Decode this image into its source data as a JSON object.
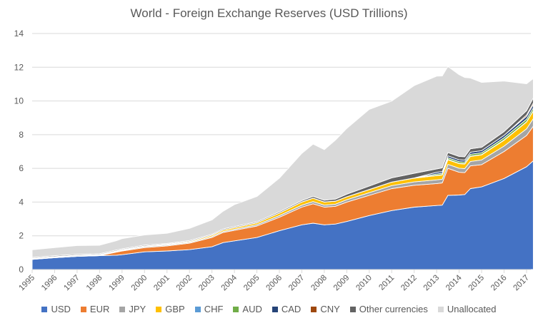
{
  "chart_data": {
    "type": "area",
    "stacked": true,
    "title": "World - Foreign Exchange Reserves (USD Trillions)",
    "xlabel": "",
    "ylabel": "",
    "ylim": [
      0,
      14
    ],
    "yticks": [
      0,
      2,
      4,
      6,
      8,
      10,
      12,
      14
    ],
    "xlim": [
      1995,
      2017.3
    ],
    "xticks": [
      "1995",
      "1996",
      "1997",
      "1998",
      "1999",
      "2000",
      "2001",
      "2002",
      "2003",
      "2004",
      "2005",
      "2006",
      "2007",
      "2008",
      "2009",
      "2010",
      "2011",
      "2012",
      "2013",
      "2014",
      "2015",
      "2016",
      "2017"
    ],
    "grid": true,
    "legend_position": "bottom",
    "x": [
      1995,
      1996,
      1997,
      1998,
      1998.75,
      1999,
      2000,
      2001,
      2002,
      2003,
      2003.5,
      2004,
      2005,
      2006,
      2007,
      2007.5,
      2008,
      2008.5,
      2009,
      2010,
      2011,
      2012,
      2013,
      2013.25,
      2013.5,
      2014,
      2014.25,
      2014.5,
      2015,
      2016,
      2017,
      2017.3
    ],
    "series": [
      {
        "name": "USD",
        "color": "#4472C4",
        "values": [
          0.6,
          0.7,
          0.78,
          0.82,
          0.85,
          0.88,
          1.05,
          1.1,
          1.18,
          1.35,
          1.6,
          1.7,
          1.9,
          2.3,
          2.65,
          2.75,
          2.65,
          2.7,
          2.85,
          3.2,
          3.5,
          3.7,
          3.8,
          3.82,
          4.4,
          4.42,
          4.45,
          4.8,
          4.9,
          5.4,
          6.1,
          6.45
        ]
      },
      {
        "name": "EUR",
        "color": "#ED7D31",
        "values": [
          0.0,
          0.0,
          0.0,
          0.0,
          0.18,
          0.22,
          0.25,
          0.3,
          0.38,
          0.55,
          0.6,
          0.62,
          0.68,
          0.8,
          1.05,
          1.15,
          1.05,
          1.05,
          1.15,
          1.2,
          1.3,
          1.3,
          1.3,
          1.32,
          1.6,
          1.35,
          1.3,
          1.35,
          1.32,
          1.6,
          1.85,
          2.05
        ]
      },
      {
        "name": "JPY",
        "color": "#A5A5A5",
        "values": [
          0.04,
          0.04,
          0.04,
          0.04,
          0.04,
          0.04,
          0.05,
          0.05,
          0.05,
          0.06,
          0.06,
          0.07,
          0.08,
          0.1,
          0.12,
          0.13,
          0.12,
          0.13,
          0.14,
          0.16,
          0.18,
          0.2,
          0.22,
          0.22,
          0.24,
          0.24,
          0.24,
          0.26,
          0.28,
          0.32,
          0.4,
          0.45
        ]
      },
      {
        "name": "GBP",
        "color": "#FFC000",
        "values": [
          0.02,
          0.02,
          0.02,
          0.02,
          0.03,
          0.03,
          0.04,
          0.04,
          0.05,
          0.07,
          0.08,
          0.09,
          0.1,
          0.14,
          0.18,
          0.2,
          0.18,
          0.17,
          0.17,
          0.18,
          0.2,
          0.22,
          0.25,
          0.25,
          0.27,
          0.27,
          0.27,
          0.3,
          0.3,
          0.35,
          0.4,
          0.45
        ]
      },
      {
        "name": "CHF",
        "color": "#5B9BD5",
        "values": [
          0.01,
          0.01,
          0.01,
          0.01,
          0.01,
          0.01,
          0.01,
          0.01,
          0.01,
          0.01,
          0.01,
          0.01,
          0.01,
          0.01,
          0.01,
          0.01,
          0.01,
          0.01,
          0.01,
          0.01,
          0.01,
          0.01,
          0.02,
          0.02,
          0.02,
          0.02,
          0.02,
          0.02,
          0.02,
          0.02,
          0.02,
          0.02
        ]
      },
      {
        "name": "AUD",
        "color": "#70AD47",
        "values": [
          0.0,
          0.0,
          0.0,
          0.0,
          0.0,
          0.0,
          0.0,
          0.0,
          0.0,
          0.0,
          0.0,
          0.0,
          0.0,
          0.0,
          0.0,
          0.0,
          0.0,
          0.0,
          0.0,
          0.0,
          0.0,
          0.0,
          0.08,
          0.08,
          0.1,
          0.1,
          0.1,
          0.11,
          0.11,
          0.13,
          0.15,
          0.17
        ]
      },
      {
        "name": "CAD",
        "color": "#264478",
        "values": [
          0.0,
          0.0,
          0.0,
          0.0,
          0.0,
          0.0,
          0.0,
          0.0,
          0.0,
          0.0,
          0.0,
          0.0,
          0.0,
          0.0,
          0.0,
          0.0,
          0.0,
          0.0,
          0.0,
          0.0,
          0.0,
          0.0,
          0.1,
          0.1,
          0.11,
          0.11,
          0.11,
          0.12,
          0.12,
          0.14,
          0.17,
          0.19
        ]
      },
      {
        "name": "CNY",
        "color": "#9E480E",
        "values": [
          0.0,
          0.0,
          0.0,
          0.0,
          0.0,
          0.0,
          0.0,
          0.0,
          0.0,
          0.0,
          0.0,
          0.0,
          0.0,
          0.0,
          0.0,
          0.0,
          0.0,
          0.0,
          0.0,
          0.0,
          0.0,
          0.0,
          0.0,
          0.0,
          0.0,
          0.0,
          0.0,
          0.0,
          0.0,
          0.0,
          0.08,
          0.1
        ]
      },
      {
        "name": "Other currencies",
        "color": "#636363",
        "values": [
          0.05,
          0.05,
          0.05,
          0.05,
          0.05,
          0.05,
          0.05,
          0.05,
          0.05,
          0.05,
          0.06,
          0.06,
          0.06,
          0.07,
          0.08,
          0.1,
          0.1,
          0.12,
          0.15,
          0.2,
          0.25,
          0.28,
          0.2,
          0.22,
          0.2,
          0.2,
          0.2,
          0.2,
          0.2,
          0.22,
          0.25,
          0.3
        ]
      },
      {
        "name": "Unallocated",
        "color": "#D9D9D9",
        "values": [
          0.45,
          0.48,
          0.52,
          0.5,
          0.55,
          0.6,
          0.6,
          0.6,
          0.72,
          0.85,
          1.05,
          1.3,
          1.5,
          2.0,
          2.8,
          3.1,
          3.0,
          3.5,
          3.9,
          4.55,
          4.55,
          5.2,
          5.5,
          5.45,
          5.1,
          4.85,
          4.7,
          4.2,
          3.85,
          3.0,
          1.6,
          1.15
        ]
      }
    ]
  }
}
